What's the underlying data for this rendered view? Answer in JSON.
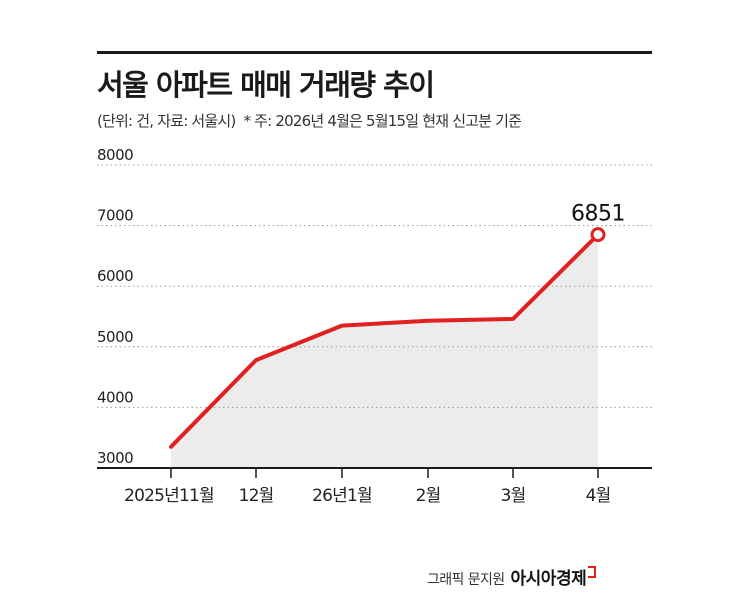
{
  "header": {
    "title": "서울 아파트 매매 거래량 추이",
    "source": "(단위: 건, 자료: 서울시)",
    "note": "* 주: 2026년 4월은 5월15일 현재 신고분 기준"
  },
  "footer": {
    "graphic_credit": "그래픽 문지원",
    "brand": "아시아경제"
  },
  "colors": {
    "line": "#e1201f",
    "area": "#ececec",
    "grid": "#9a9a9a",
    "text": "#222222"
  },
  "chart_data": {
    "type": "area",
    "title": "서울 아파트 매매 거래량 추이",
    "xlabel": "",
    "ylabel": "",
    "categories": [
      "2025년11월",
      "12월",
      "26년1월",
      "2월",
      "3월",
      "4월"
    ],
    "values": [
      3350,
      4780,
      5350,
      5430,
      5460,
      6851
    ],
    "ylim": [
      3000,
      8000
    ],
    "yticks": [
      "3000",
      "4000",
      "5000",
      "6000",
      "7000",
      "8000"
    ],
    "grid": true,
    "annotations": [
      {
        "category": "4월",
        "label": "6851"
      }
    ]
  }
}
